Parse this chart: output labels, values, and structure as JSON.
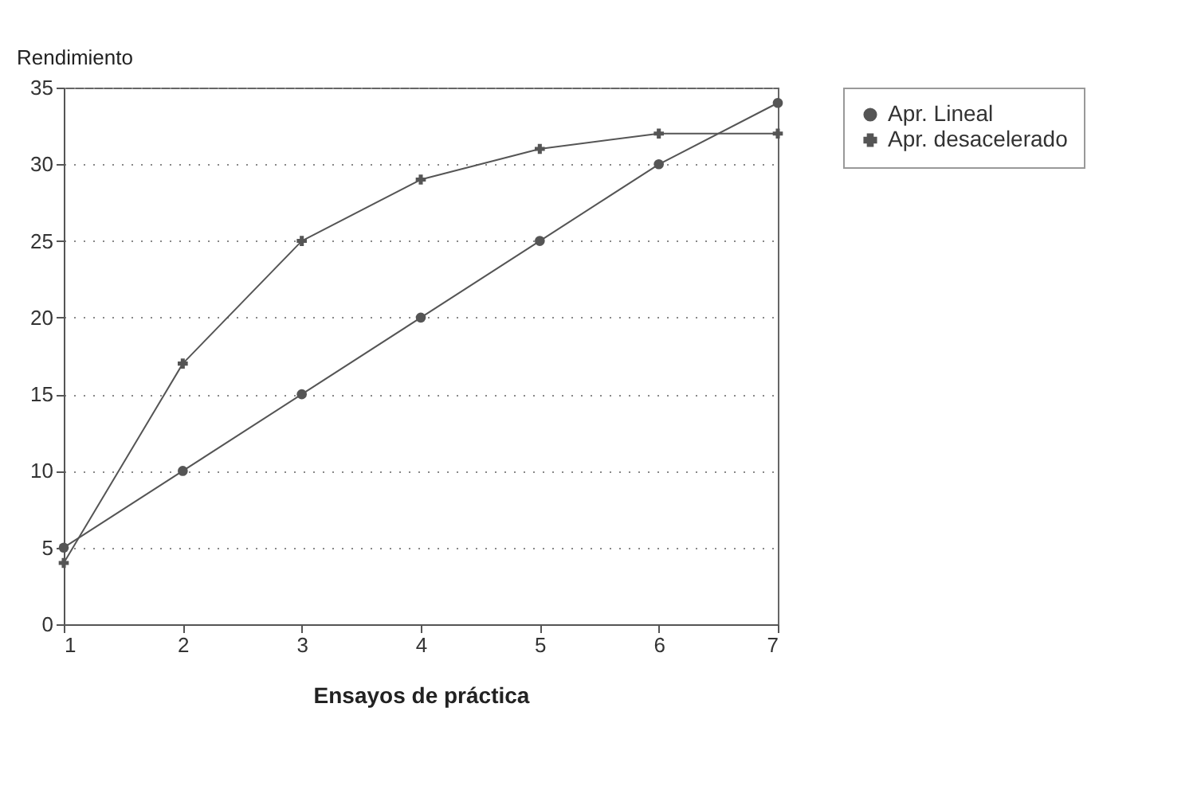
{
  "chart_data": {
    "type": "line",
    "xlabel": "Ensayos de práctica",
    "ylabel": "Rendimiento",
    "x": [
      1,
      2,
      3,
      4,
      5,
      6,
      7
    ],
    "series": [
      {
        "name": "Apr. Lineal",
        "color": "#555555",
        "marker": "circle",
        "values": [
          5,
          10,
          15,
          20,
          25,
          30,
          34
        ]
      },
      {
        "name": "Apr. desacelerado",
        "color": "#555555",
        "marker": "cross",
        "values": [
          4,
          17,
          25,
          29,
          31,
          32,
          32
        ]
      }
    ],
    "xlim": [
      1,
      7
    ],
    "xticks": [
      1,
      2,
      3,
      4,
      5,
      6,
      7
    ],
    "ylim": [
      0,
      35
    ],
    "yticks": [
      0,
      5,
      10,
      15,
      20,
      25,
      30,
      35
    ],
    "grid": "y",
    "legend": "right",
    "line_style": "solid"
  }
}
